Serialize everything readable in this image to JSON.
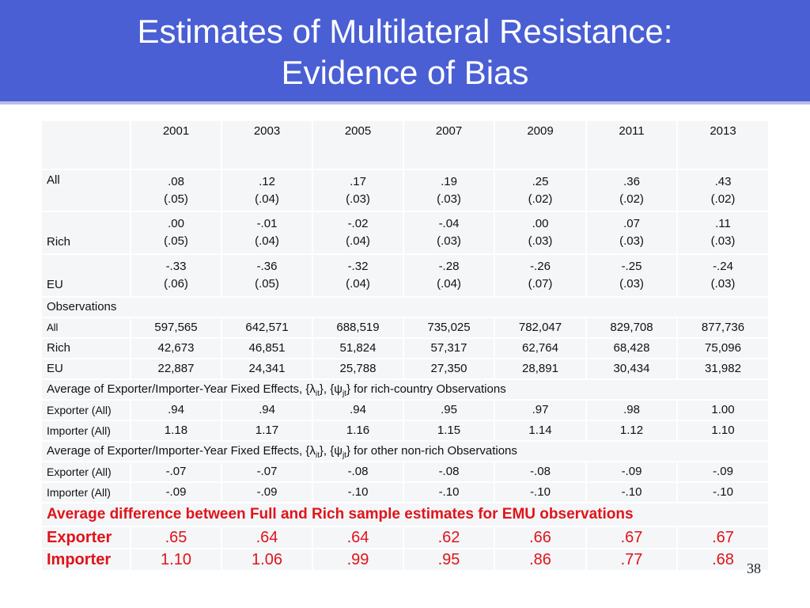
{
  "title": {
    "line1": "Estimates of Multilateral Resistance:",
    "line2": "Evidence of Bias"
  },
  "years": [
    "2001",
    "2003",
    "2005",
    "2007",
    "2009",
    "2011",
    "2013"
  ],
  "estimates": {
    "all": {
      "label": "All",
      "coef": [
        ".08",
        ".12",
        ".17",
        ".19",
        ".25",
        ".36",
        ".43"
      ],
      "se": [
        "(.05)",
        "(.04)",
        "(.03)",
        "(.03)",
        "(.02)",
        "(.02)",
        "(.02)"
      ]
    },
    "rich": {
      "label": "Rich",
      "coef": [
        ".00",
        "-.01",
        "-.02",
        "-.04",
        ".00",
        ".07",
        ".11"
      ],
      "se": [
        "(.05)",
        "(.04)",
        "(.04)",
        "(.03)",
        "(.03)",
        "(.03)",
        "(.03)"
      ]
    },
    "eu": {
      "label": "EU",
      "coef": [
        "-.33",
        "-.36",
        "-.32",
        "-.28",
        "-.26",
        "-.25",
        "-.24"
      ],
      "se": [
        "(.06)",
        "(.05)",
        "(.04)",
        "(.04)",
        "(.07)",
        "(.03)",
        "(.03)"
      ]
    }
  },
  "observations": {
    "heading": "Observations",
    "all": {
      "label": "All",
      "values": [
        "597,565",
        "642,571",
        "688,519",
        "735,025",
        "782,047",
        "829,708",
        "877,736"
      ]
    },
    "rich": {
      "label": "Rich",
      "values": [
        "42,673",
        "46,851",
        "51,824",
        "57,317",
        "62,764",
        "68,428",
        "75,096"
      ]
    },
    "eu": {
      "label": "EU",
      "values": [
        "22,887",
        "24,341",
        "25,788",
        "27,350",
        "28,891",
        "30,434",
        "31,982"
      ]
    }
  },
  "fe_rich": {
    "heading_pre": "Average of Exporter/Importer-Year Fixed Effects, {λ",
    "heading_sub1": "it",
    "heading_mid": "}, {ψ",
    "heading_sub2": "jt",
    "heading_post": "} for rich-country Observations",
    "exporter": {
      "label": "Exporter (All)",
      "values": [
        ".94",
        ".94",
        ".94",
        ".95",
        ".97",
        ".98",
        "1.00"
      ]
    },
    "importer": {
      "label": "Importer (All)",
      "values": [
        "1.18",
        "1.17",
        "1.16",
        "1.15",
        "1.14",
        "1.12",
        "1.10"
      ]
    }
  },
  "fe_other": {
    "heading_pre": "Average of Exporter/Importer-Year Fixed Effects, {λ",
    "heading_sub1": "it",
    "heading_mid": "}, {ψ",
    "heading_sub2": "jt",
    "heading_post": "} for other non-rich Observations",
    "exporter": {
      "label": "Exporter (All)",
      "values": [
        "-.07",
        "-.07",
        "-.08",
        "-.08",
        "-.08",
        "-.09",
        "-.09"
      ]
    },
    "importer": {
      "label": "Importer (All)",
      "values": [
        "-.09",
        "-.09",
        "-.10",
        "-.10",
        "-.10",
        "-.10",
        "-.10"
      ]
    }
  },
  "emu": {
    "heading": "Average difference between Full and Rich sample estimates for EMU observations",
    "exporter": {
      "label": "Exporter",
      "values": [
        ".65",
        ".64",
        ".64",
        ".62",
        ".66",
        ".67",
        ".67"
      ]
    },
    "importer": {
      "label": "Importer",
      "values": [
        "1.10",
        "1.06",
        ".99",
        ".95",
        ".86",
        ".77",
        ".68"
      ]
    }
  },
  "colors": {
    "header_bg": "#4a5fd4",
    "highlight_red": "#e0141a",
    "cell_bg": "#f4f6f8"
  },
  "page_number": "38"
}
